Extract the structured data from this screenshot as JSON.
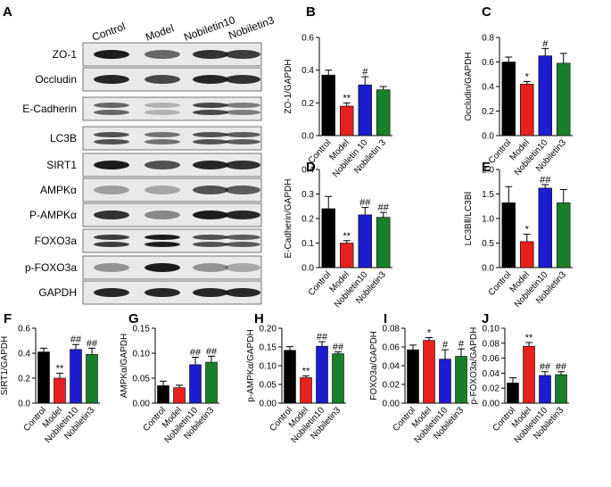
{
  "blot": {
    "panel": "A",
    "lanes": [
      "Control",
      "Model",
      "Nobiletin10",
      "Nobiletin3"
    ],
    "rows": [
      "ZO-1",
      "Occludin",
      "E-Cadherin",
      "LC3B",
      "SIRT1",
      "AMPKα",
      "P-AMPKα",
      "FOXO3a",
      "p-FOXO3a",
      "GAPDH"
    ]
  },
  "chart_data": [
    {
      "type": "bar",
      "panel": "B",
      "ylabel": "ZO-1/GAPDH",
      "categories": [
        "Control",
        "Model",
        "Nobiletin 10",
        "Nobiletin 3"
      ],
      "values": [
        0.37,
        0.18,
        0.31,
        0.28
      ],
      "errors": [
        0.03,
        0.02,
        0.05,
        0.02
      ],
      "annotations": [
        null,
        "**",
        "#",
        null
      ],
      "colors": [
        "#000000",
        "#e8201e",
        "#1c1cd0",
        "#1a7f2a"
      ],
      "ylim": [
        0,
        0.6
      ],
      "yticks": [
        {
          "value": 0,
          "label": "0.0"
        },
        0.2,
        0.4,
        0.6
      ]
    },
    {
      "type": "bar",
      "panel": "C",
      "ylabel": "Occludin/GAPDH",
      "categories": [
        "Control",
        "Model",
        "Nobiletin10",
        "Nobiletin3"
      ],
      "values": [
        0.6,
        0.42,
        0.65,
        0.59
      ],
      "errors": [
        0.04,
        0.02,
        0.06,
        0.08
      ],
      "annotations": [
        null,
        "*",
        "#",
        null
      ],
      "colors": [
        "#000000",
        "#e8201e",
        "#1c1cd0",
        "#1a7f2a"
      ],
      "ylim": [
        0,
        0.8
      ],
      "yticks": [
        {
          "value": 0,
          "label": "0.0"
        },
        0.2,
        0.4,
        0.6,
        0.8
      ]
    },
    {
      "type": "bar",
      "panel": "D",
      "ylabel": "E-Cadherin/GAPDH",
      "categories": [
        "Control",
        "Model",
        "Nobiletin10",
        "Nobiletin3"
      ],
      "values": [
        0.24,
        0.1,
        0.215,
        0.205
      ],
      "errors": [
        0.05,
        0.01,
        0.03,
        0.02
      ],
      "annotations": [
        null,
        "**",
        "##",
        "##"
      ],
      "colors": [
        "#000000",
        "#e8201e",
        "#1c1cd0",
        "#1a7f2a"
      ],
      "ylim": [
        0,
        0.4
      ],
      "yticks": [
        {
          "value": 0,
          "label": "0.0"
        },
        0.1,
        0.2,
        0.3,
        0.4
      ]
    },
    {
      "type": "bar",
      "panel": "E",
      "ylabel": "LC3BⅡ/LC3BⅠ",
      "categories": [
        "Control",
        "Model",
        "Nobiletin10",
        "Nobiletin3"
      ],
      "values": [
        1.32,
        0.53,
        1.62,
        1.32
      ],
      "errors": [
        0.33,
        0.15,
        0.07,
        0.27
      ],
      "annotations": [
        null,
        "*",
        "##",
        null
      ],
      "colors": [
        "#000000",
        "#e8201e",
        "#1c1cd0",
        "#1a7f2a"
      ],
      "ylim": [
        0,
        2
      ],
      "yticks": [
        {
          "value": 0,
          "label": "0.0"
        },
        0.5,
        {
          "value": 1,
          "label": "1.0"
        },
        1.5,
        {
          "value": 2,
          "label": "2.0"
        }
      ]
    },
    {
      "type": "bar",
      "panel": "F",
      "ylabel": "SIRT1/GAPDH",
      "categories": [
        "Control",
        "Model",
        "Nobiletin10",
        "Nobiletin3"
      ],
      "values": [
        0.41,
        0.2,
        0.43,
        0.39
      ],
      "errors": [
        0.03,
        0.04,
        0.04,
        0.05
      ],
      "annotations": [
        null,
        "**",
        "##",
        "##"
      ],
      "colors": [
        "#000000",
        "#e8201e",
        "#1c1cd0",
        "#1a7f2a"
      ],
      "ylim": [
        0,
        0.6
      ],
      "yticks": [
        {
          "value": 0,
          "label": "0.0"
        },
        0.2,
        0.4,
        0.6
      ]
    },
    {
      "type": "bar",
      "panel": "G",
      "ylabel": "AMPKα/GAPDH",
      "categories": [
        "Control",
        "Model",
        "Nobiletin10",
        "Nobiletin3"
      ],
      "values": [
        0.035,
        0.031,
        0.077,
        0.082
      ],
      "errors": [
        0.009,
        0.005,
        0.015,
        0.012
      ],
      "annotations": [
        null,
        null,
        "##",
        "##"
      ],
      "colors": [
        "#000000",
        "#e8201e",
        "#1c1cd0",
        "#1a7f2a"
      ],
      "ylim": [
        0,
        0.15
      ],
      "yticks": [
        {
          "value": 0,
          "label": "0.00"
        },
        0.05,
        {
          "value": 0.1,
          "label": "0.10"
        },
        0.15
      ]
    },
    {
      "type": "bar",
      "panel": "H",
      "ylabel": "p-AMPKα/GAPDH",
      "categories": [
        "Control",
        "Model",
        "Nobiletin10",
        "Nobiletin3"
      ],
      "values": [
        0.141,
        0.068,
        0.152,
        0.132
      ],
      "errors": [
        0.01,
        0.005,
        0.012,
        0.005
      ],
      "annotations": [
        null,
        "**",
        "##",
        "##"
      ],
      "colors": [
        "#000000",
        "#e8201e",
        "#1c1cd0",
        "#1a7f2a"
      ],
      "ylim": [
        0,
        0.2
      ],
      "yticks": [
        {
          "value": 0,
          "label": "0.00"
        },
        0.05,
        {
          "value": 0.1,
          "label": "0.10"
        },
        0.15,
        {
          "value": 0.2,
          "label": "0.20"
        }
      ]
    },
    {
      "type": "bar",
      "panel": "I",
      "ylabel": "FOXO3a/GAPDH",
      "categories": [
        "Control",
        "Model",
        "Nobiletin10",
        "Nobiletin3"
      ],
      "values": [
        0.057,
        0.067,
        0.047,
        0.05
      ],
      "errors": [
        0.005,
        0.003,
        0.01,
        0.008
      ],
      "annotations": [
        null,
        "*",
        "#",
        "#"
      ],
      "colors": [
        "#000000",
        "#e8201e",
        "#1c1cd0",
        "#1a7f2a"
      ],
      "ylim": [
        0,
        0.08
      ],
      "yticks": [
        {
          "value": 0,
          "label": "0.00"
        },
        0.02,
        0.04,
        0.06,
        0.08
      ]
    },
    {
      "type": "bar",
      "panel": "J",
      "ylabel": "p-FOXO3a/GAPDH",
      "categories": [
        "Control",
        "Model",
        "Nobiletin10",
        "Nobiletin3"
      ],
      "values": [
        0.027,
        0.076,
        0.037,
        0.038
      ],
      "errors": [
        0.007,
        0.005,
        0.005,
        0.004
      ],
      "annotations": [
        null,
        "**",
        "##",
        "##"
      ],
      "colors": [
        "#000000",
        "#e8201e",
        "#1c1cd0",
        "#1a7f2a"
      ],
      "ylim": [
        0,
        0.1
      ],
      "yticks": [
        {
          "value": 0,
          "label": "0.00"
        },
        0.02,
        0.04,
        0.06,
        0.08,
        {
          "value": 0.1,
          "label": "0.10"
        }
      ]
    }
  ]
}
